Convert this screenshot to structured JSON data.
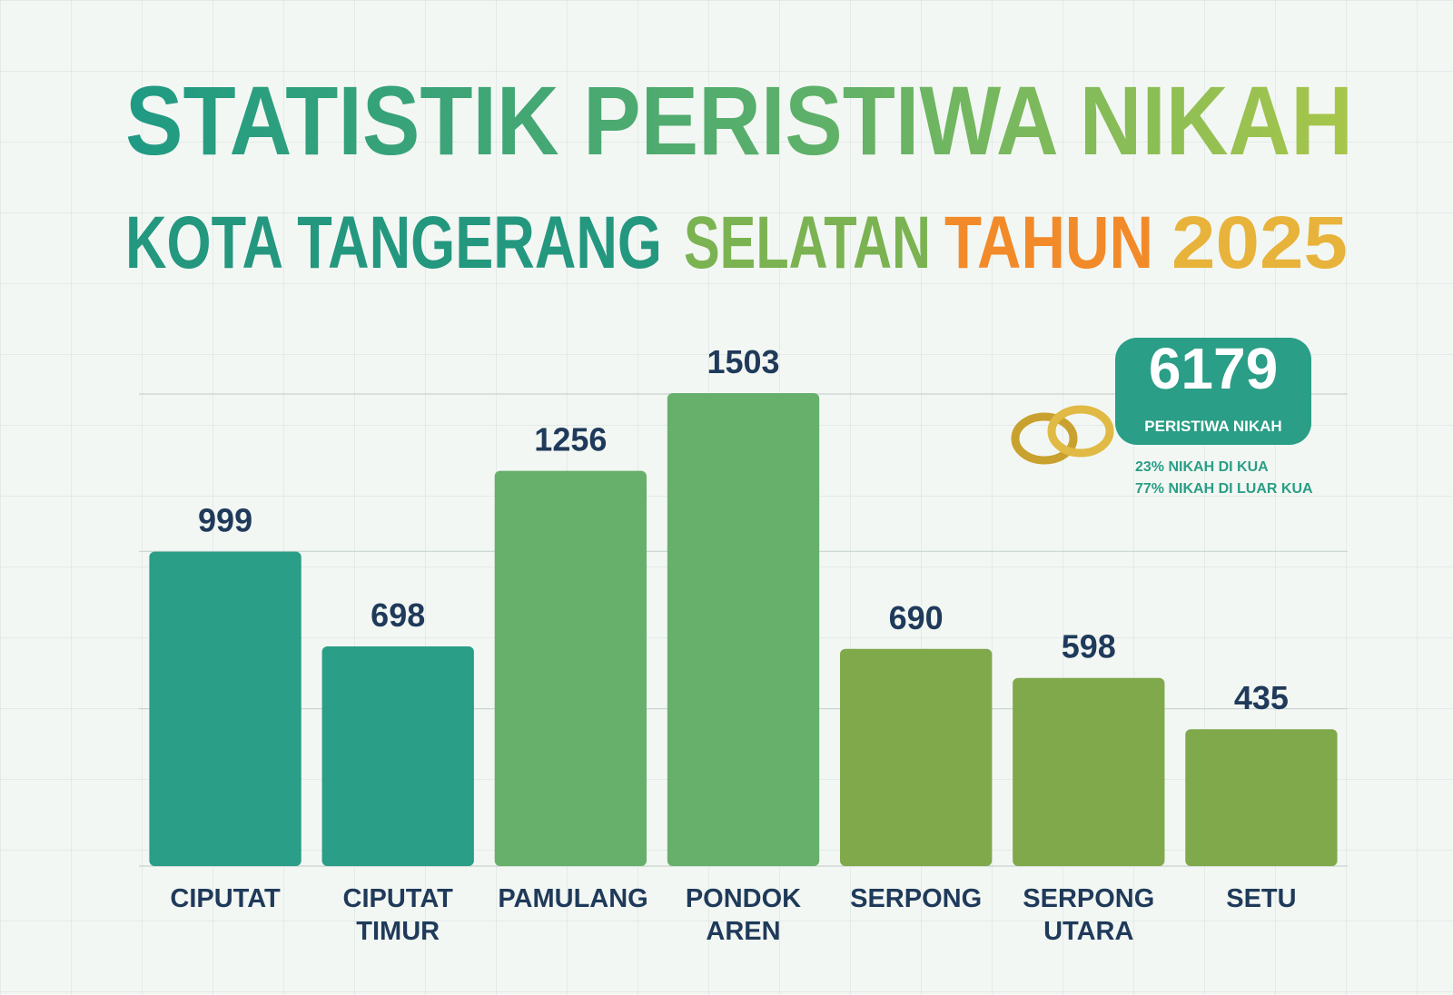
{
  "chart_data": {
    "type": "bar",
    "title": "STATISTIK PERISTIWA NIKAH",
    "subtitle": [
      "KOTA TANGERANG",
      "SELATAN",
      "TAHUN",
      "2025"
    ],
    "categories": [
      "CIPUTAT",
      "CIPUTAT TIMUR",
      "PAMULANG",
      "PONDOK AREN",
      "SERPONG",
      "SERPONG UTARA",
      "SETU"
    ],
    "values": [
      999,
      698,
      1256,
      1503,
      690,
      598,
      435
    ],
    "colors": [
      "#2a9e86",
      "#2a9e86",
      "#66b06c",
      "#66b06c",
      "#80a94c",
      "#80a94c",
      "#80a94c"
    ],
    "ylim": [
      0,
      1500
    ],
    "yticks": [
      0,
      500,
      1000,
      1500
    ],
    "grid": true,
    "tick_labels": false,
    "annotation": {
      "total": 6179,
      "total_label": "PERISTIWA NIKAH",
      "notes": [
        "23% NIKAH DI KUA",
        "77% NIKAH DI LUAR KUA"
      ]
    }
  }
}
